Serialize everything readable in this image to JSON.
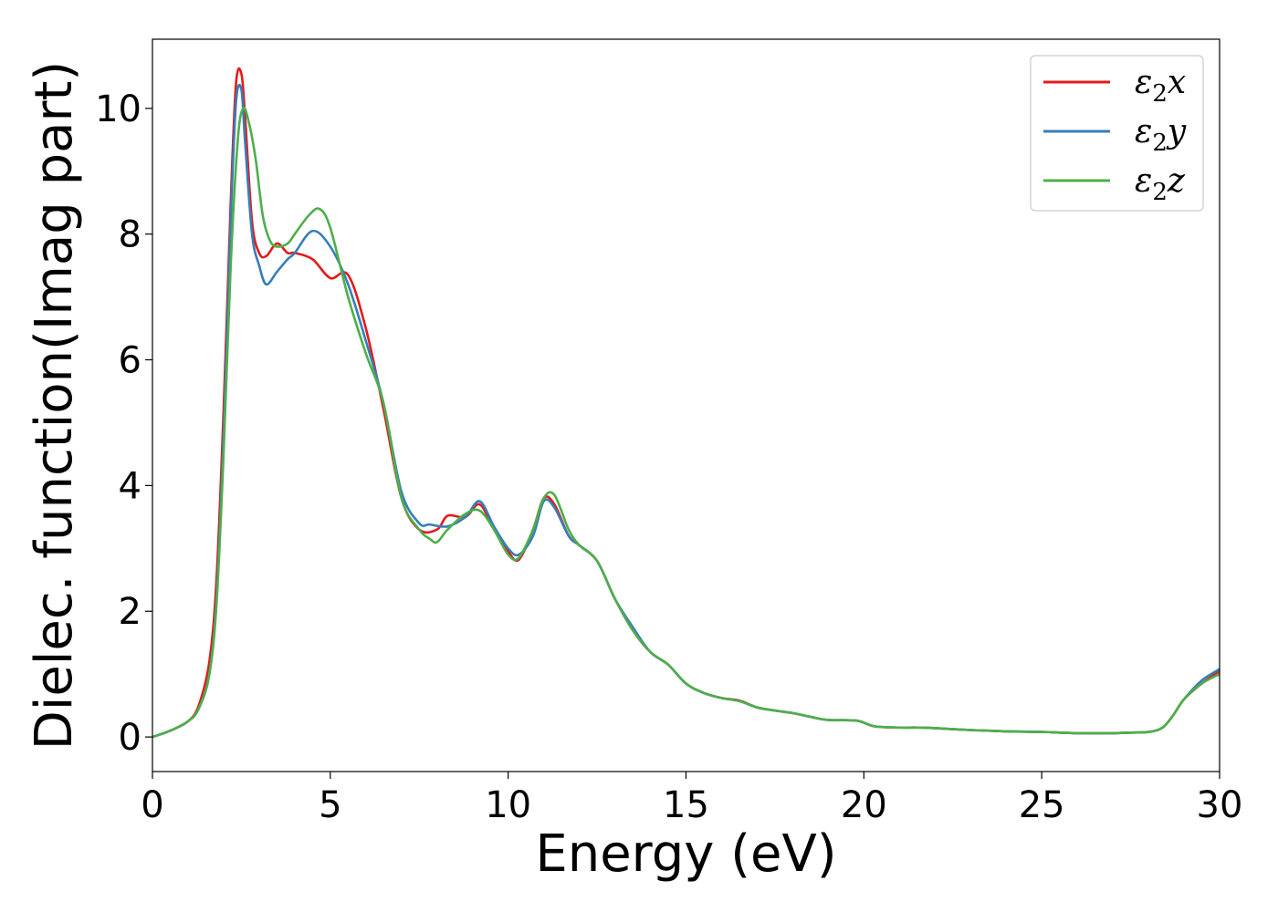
{
  "chart_data": {
    "type": "line",
    "title": "",
    "xlabel": "Energy (eV)",
    "ylabel": "Dielec. function(Imag part)",
    "xlim": [
      0,
      30
    ],
    "ylim": [
      -0.55,
      11.1
    ],
    "xticks": [
      0,
      5,
      10,
      15,
      20,
      25,
      30
    ],
    "yticks": [
      0,
      2,
      4,
      6,
      8,
      10
    ],
    "xtick_labels": [
      "0",
      "5",
      "10",
      "15",
      "20",
      "25",
      "30"
    ],
    "ytick_labels": [
      "0",
      "2",
      "4",
      "6",
      "8",
      "10"
    ],
    "grid": false,
    "legend_position": "top-right",
    "series": [
      {
        "name": "ε2x",
        "legend": {
          "base": "ε",
          "sub": "2",
          "tail": "x"
        },
        "color": "#e41a1c",
        "x": [
          0,
          0.5,
          1.0,
          1.3,
          1.6,
          1.8,
          2.0,
          2.2,
          2.35,
          2.5,
          2.6,
          2.8,
          3.0,
          3.2,
          3.5,
          3.8,
          4.0,
          4.5,
          5.0,
          5.5,
          6.0,
          6.5,
          7.0,
          7.5,
          8.0,
          8.3,
          8.8,
          9.2,
          9.6,
          10.0,
          10.3,
          10.7,
          11.0,
          11.3,
          11.7,
          12.0,
          12.5,
          13.0,
          13.5,
          14.0,
          14.5,
          15.0,
          15.5,
          16.0,
          16.5,
          17.0,
          17.5,
          18.0,
          18.5,
          19.0,
          19.8,
          20.3,
          21.0,
          21.5,
          22.0,
          23.0,
          24.0,
          25.0,
          25.5,
          26.0,
          26.5,
          27.0,
          27.5,
          28.0,
          28.4,
          28.7,
          29.0,
          29.5,
          30.0
        ],
        "y": [
          0.0,
          0.1,
          0.25,
          0.5,
          1.2,
          2.5,
          5.2,
          8.5,
          10.4,
          10.55,
          9.9,
          8.2,
          7.7,
          7.65,
          7.85,
          7.7,
          7.7,
          7.6,
          7.3,
          7.35,
          6.5,
          5.2,
          3.8,
          3.3,
          3.3,
          3.52,
          3.5,
          3.7,
          3.3,
          2.95,
          2.82,
          3.3,
          3.8,
          3.7,
          3.2,
          3.05,
          2.8,
          2.2,
          1.7,
          1.35,
          1.15,
          0.85,
          0.7,
          0.62,
          0.58,
          0.47,
          0.42,
          0.38,
          0.32,
          0.27,
          0.26,
          0.17,
          0.15,
          0.15,
          0.14,
          0.11,
          0.09,
          0.08,
          0.07,
          0.06,
          0.06,
          0.06,
          0.07,
          0.08,
          0.15,
          0.35,
          0.6,
          0.85,
          1.05
        ]
      },
      {
        "name": "ε2y",
        "legend": {
          "base": "ε",
          "sub": "2",
          "tail": "y"
        },
        "color": "#377eb8",
        "x": [
          0,
          0.5,
          1.0,
          1.3,
          1.6,
          1.8,
          2.0,
          2.2,
          2.35,
          2.5,
          2.6,
          2.8,
          3.0,
          3.2,
          3.5,
          3.8,
          4.0,
          4.5,
          5.0,
          5.5,
          6.0,
          6.5,
          7.0,
          7.5,
          7.8,
          8.3,
          8.8,
          9.2,
          9.6,
          10.0,
          10.3,
          10.7,
          11.0,
          11.3,
          11.7,
          12.0,
          12.5,
          13.0,
          13.5,
          14.0,
          14.5,
          15.0,
          15.5,
          16.0,
          16.5,
          17.0,
          17.5,
          18.0,
          18.5,
          19.0,
          19.8,
          20.3,
          21.0,
          21.5,
          22.0,
          23.0,
          24.0,
          25.0,
          25.5,
          26.0,
          26.5,
          27.0,
          27.5,
          28.0,
          28.4,
          28.7,
          29.0,
          29.5,
          30.0
        ],
        "y": [
          0.0,
          0.1,
          0.25,
          0.45,
          1.0,
          2.2,
          4.8,
          8.2,
          10.1,
          10.3,
          9.5,
          8.0,
          7.5,
          7.2,
          7.4,
          7.6,
          7.7,
          8.05,
          7.8,
          7.2,
          6.3,
          5.3,
          3.9,
          3.4,
          3.38,
          3.35,
          3.5,
          3.75,
          3.35,
          3.0,
          2.9,
          3.2,
          3.75,
          3.65,
          3.2,
          3.05,
          2.8,
          2.2,
          1.75,
          1.35,
          1.15,
          0.85,
          0.7,
          0.62,
          0.57,
          0.47,
          0.42,
          0.38,
          0.32,
          0.27,
          0.26,
          0.17,
          0.15,
          0.15,
          0.14,
          0.11,
          0.09,
          0.08,
          0.07,
          0.06,
          0.06,
          0.06,
          0.07,
          0.08,
          0.15,
          0.35,
          0.6,
          0.9,
          1.08
        ]
      },
      {
        "name": "ε2z",
        "legend": {
          "base": "ε",
          "sub": "2",
          "tail": "z"
        },
        "color": "#4daf4a",
        "x": [
          0,
          0.5,
          1.0,
          1.3,
          1.6,
          1.8,
          2.0,
          2.2,
          2.4,
          2.55,
          2.7,
          2.9,
          3.1,
          3.3,
          3.5,
          3.8,
          4.0,
          4.4,
          4.7,
          5.0,
          5.5,
          6.0,
          6.5,
          7.0,
          7.5,
          7.8,
          8.0,
          8.3,
          8.8,
          9.2,
          9.6,
          10.0,
          10.3,
          10.7,
          11.0,
          11.3,
          11.7,
          12.0,
          12.5,
          13.0,
          13.5,
          14.0,
          14.5,
          15.0,
          15.5,
          16.0,
          16.5,
          17.0,
          17.5,
          18.0,
          18.5,
          19.0,
          19.8,
          20.3,
          21.0,
          21.5,
          22.0,
          23.0,
          24.0,
          25.0,
          25.5,
          26.0,
          26.5,
          27.0,
          27.5,
          28.0,
          28.4,
          28.7,
          29.0,
          29.5,
          30.0
        ],
        "y": [
          0.0,
          0.1,
          0.25,
          0.45,
          1.0,
          2.1,
          4.5,
          7.5,
          9.5,
          10.0,
          9.8,
          9.2,
          8.3,
          7.9,
          7.8,
          7.85,
          8.0,
          8.3,
          8.4,
          8.1,
          7.0,
          6.1,
          5.3,
          3.8,
          3.3,
          3.15,
          3.1,
          3.3,
          3.55,
          3.6,
          3.3,
          2.9,
          2.85,
          3.3,
          3.8,
          3.85,
          3.3,
          3.05,
          2.8,
          2.2,
          1.7,
          1.35,
          1.15,
          0.85,
          0.7,
          0.62,
          0.57,
          0.47,
          0.42,
          0.38,
          0.32,
          0.27,
          0.26,
          0.17,
          0.15,
          0.15,
          0.14,
          0.11,
          0.09,
          0.08,
          0.07,
          0.06,
          0.06,
          0.06,
          0.07,
          0.08,
          0.15,
          0.35,
          0.6,
          0.85,
          1.0
        ]
      }
    ]
  }
}
